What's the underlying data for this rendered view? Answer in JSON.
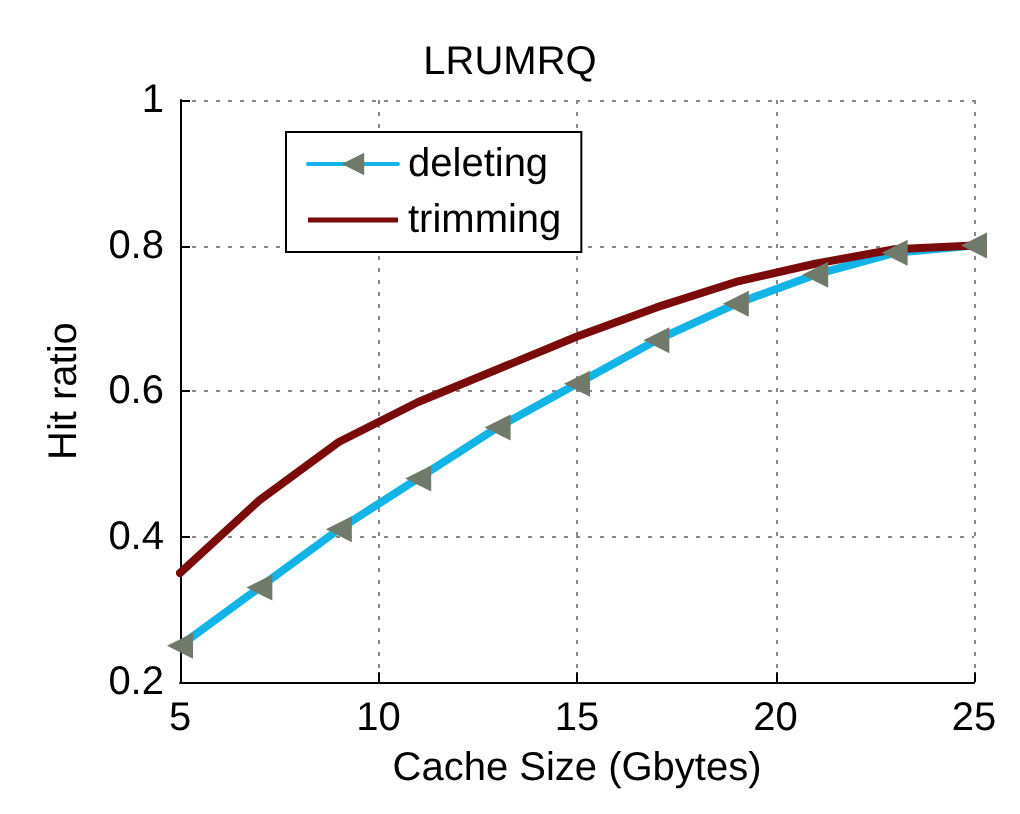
{
  "chart_data": {
    "type": "line",
    "title": "LRUMRQ",
    "xlabel": "Cache Size (Gbytes)",
    "ylabel": "Hit ratio",
    "x": [
      5,
      7,
      9,
      11,
      13,
      15,
      17,
      19,
      21,
      23,
      25
    ],
    "series": [
      {
        "name": "deleting",
        "color": "#12b4e8",
        "marker": "triangle",
        "values": [
          0.25,
          0.33,
          0.41,
          0.48,
          0.55,
          0.61,
          0.67,
          0.72,
          0.76,
          0.79,
          0.8
        ]
      },
      {
        "name": "trimming",
        "color": "#7b0a0a",
        "marker": "none",
        "values": [
          0.35,
          0.45,
          0.53,
          0.585,
          0.63,
          0.675,
          0.715,
          0.75,
          0.775,
          0.795,
          0.8
        ]
      }
    ],
    "xlim": [
      5,
      25
    ],
    "xticks": [
      5,
      10,
      15,
      20,
      25
    ],
    "ylim": [
      0.2,
      1
    ],
    "yticks": [
      0.2,
      0.4,
      0.6,
      0.8,
      1
    ],
    "grid": true,
    "legend": "top left",
    "line_style": "solid"
  }
}
